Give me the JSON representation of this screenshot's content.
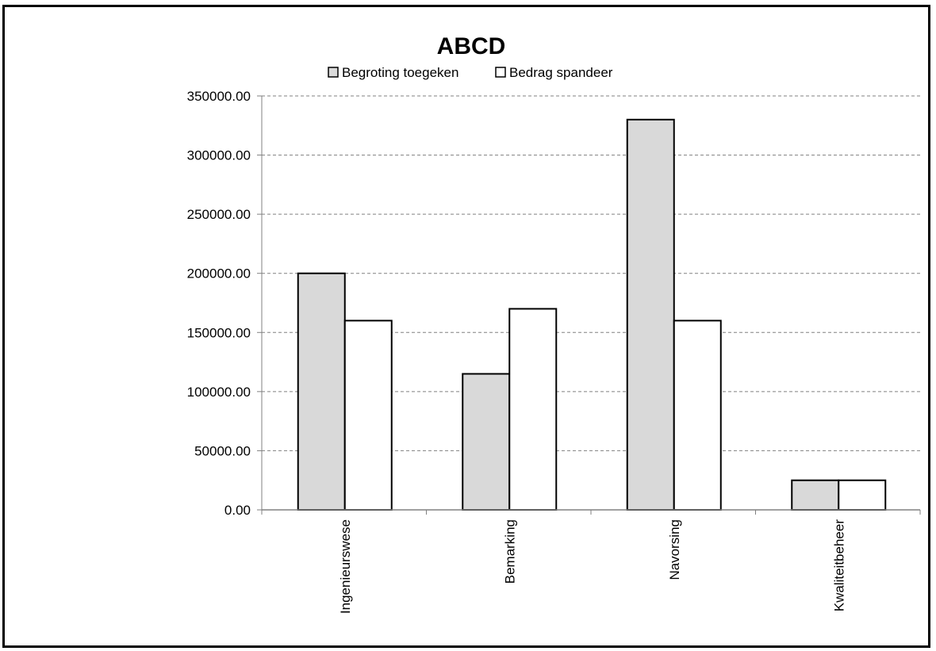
{
  "chart_data": {
    "type": "bar",
    "title": "ABCD",
    "xlabel": "",
    "ylabel": "",
    "categories": [
      "Ingenieurswese",
      "Bemarking",
      "Navorsing",
      "Kwaliteitbeheer"
    ],
    "series": [
      {
        "name": "Begroting toegeken",
        "values": [
          200000,
          115000,
          330000,
          25000
        ],
        "color": "#d9d9d9"
      },
      {
        "name": "Bedrag spandeer",
        "values": [
          160000,
          170000,
          160000,
          25000
        ],
        "color": "#ffffff"
      }
    ],
    "ylim": [
      0,
      350000
    ],
    "yticks": [
      0,
      50000,
      100000,
      150000,
      200000,
      250000,
      300000,
      350000
    ],
    "ytick_labels": [
      "0.00",
      "50000.00",
      "100000.00",
      "150000.00",
      "200000.00",
      "250000.00",
      "300000.00",
      "350000.00"
    ],
    "grid": true,
    "grid_style": "dashed",
    "legend_position": "top-center",
    "category_label_rotation": "vertical",
    "bar_edge_color": "#000000"
  }
}
